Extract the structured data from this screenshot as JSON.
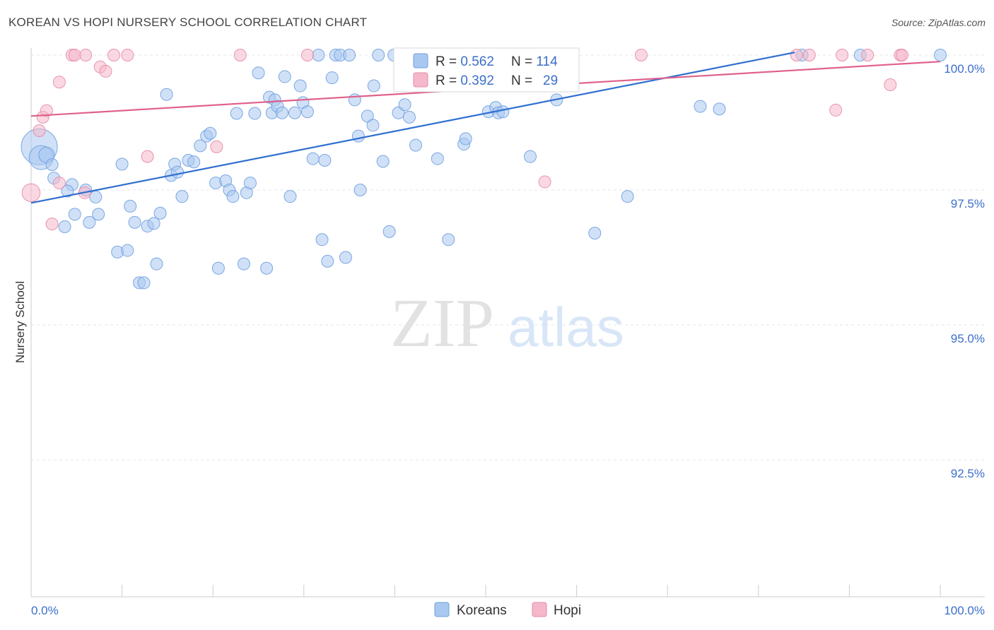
{
  "header": {
    "title": "KOREAN VS HOPI NURSERY SCHOOL CORRELATION CHART",
    "source": "Source: ZipAtlas.com"
  },
  "watermark": {
    "zip": "ZIP",
    "atlas": "atlas"
  },
  "colors": {
    "korean_fill": "#a9c8f0",
    "korean_stroke": "#6f9fe0",
    "korean_line": "#2f6fd0",
    "hopi_fill": "#f5b8cb",
    "hopi_stroke": "#e58aa8",
    "hopi_line": "#e0608a",
    "grid": "#e3e6ea",
    "axis_text": "#3d6fc9"
  },
  "stats_box": {
    "korean": {
      "r_label": "R = ",
      "r_value": "0.562",
      "n_label": "N = ",
      "n_value": "114"
    },
    "hopi": {
      "r_label": "R = ",
      "r_value": "0.392",
      "n_label": "N = ",
      "n_value": "29"
    }
  },
  "chart_data": {
    "type": "scatter",
    "title": "KOREAN VS HOPI NURSERY SCHOOL CORRELATION CHART",
    "xlabel": "",
    "ylabel": "Nursery School",
    "xlim": [
      0,
      100
    ],
    "ylim": [
      90.2,
      100.5
    ],
    "x_tick_labels": [
      {
        "value": 0,
        "label": "0.0%"
      },
      {
        "value": 100,
        "label": "100.0%"
      }
    ],
    "y_tick_labels": [
      {
        "value": 100,
        "label": "100.0%"
      },
      {
        "value": 97.5,
        "label": "97.5%"
      },
      {
        "value": 95,
        "label": "95.0%"
      },
      {
        "value": 92.5,
        "label": "92.5%"
      }
    ],
    "grid": true,
    "legend_position": "bottom-center",
    "series": [
      {
        "name": "Koreans",
        "r": 0.562,
        "n": 114,
        "trend": [
          [
            0,
            97.26
          ],
          [
            84,
            100.05
          ]
        ],
        "points": [
          [
            0.9,
            98.3,
            3
          ],
          [
            1.1,
            98.1,
            2
          ],
          [
            1.7,
            98.15,
            1.3
          ],
          [
            2.3,
            97.97,
            1
          ],
          [
            2.5,
            97.72,
            1
          ],
          [
            4.5,
            97.6,
            1
          ],
          [
            4.0,
            97.48,
            1
          ],
          [
            6.0,
            97.5,
            1
          ],
          [
            7.1,
            97.37,
            1
          ],
          [
            4.8,
            97.05,
            1
          ],
          [
            7.4,
            97.05,
            1
          ],
          [
            3.7,
            96.82,
            1
          ],
          [
            6.4,
            96.9,
            1
          ],
          [
            10.0,
            97.98,
            1
          ],
          [
            10.9,
            97.2,
            1
          ],
          [
            11.4,
            96.9,
            1
          ],
          [
            12.8,
            96.83,
            1
          ],
          [
            13.5,
            96.88,
            1
          ],
          [
            14.2,
            97.07,
            1
          ],
          [
            9.5,
            96.35,
            1
          ],
          [
            10.6,
            96.38,
            1
          ],
          [
            13.8,
            96.13,
            1
          ],
          [
            11.9,
            95.78,
            1
          ],
          [
            12.4,
            95.78,
            1
          ],
          [
            14.9,
            99.27,
            1
          ],
          [
            15.4,
            97.77,
            1
          ],
          [
            15.8,
            97.98,
            1
          ],
          [
            16.1,
            97.83,
            1
          ],
          [
            16.6,
            97.38,
            1
          ],
          [
            17.3,
            98.05,
            1
          ],
          [
            17.9,
            98.02,
            1
          ],
          [
            18.6,
            98.32,
            1
          ],
          [
            19.3,
            98.5,
            1
          ],
          [
            19.7,
            98.55,
            1
          ],
          [
            20.3,
            97.63,
            1
          ],
          [
            20.6,
            96.05,
            1
          ],
          [
            21.4,
            97.67,
            1
          ],
          [
            21.8,
            97.5,
            1
          ],
          [
            22.2,
            97.38,
            1
          ],
          [
            22.6,
            98.92,
            1
          ],
          [
            23.4,
            96.13,
            1
          ],
          [
            23.7,
            97.45,
            1
          ],
          [
            24.1,
            97.63,
            1
          ],
          [
            24.6,
            98.92,
            1
          ],
          [
            25.0,
            99.67,
            1
          ],
          [
            25.9,
            96.05,
            1
          ],
          [
            26.2,
            99.22,
            1
          ],
          [
            26.5,
            98.93,
            1
          ],
          [
            26.8,
            99.17,
            1
          ],
          [
            27.1,
            99.05,
            1
          ],
          [
            27.6,
            98.93,
            1
          ],
          [
            27.9,
            99.6,
            1
          ],
          [
            28.5,
            97.38,
            1
          ],
          [
            29.0,
            98.93,
            1
          ],
          [
            29.9,
            99.12,
            1
          ],
          [
            29.6,
            99.43,
            1
          ],
          [
            30.4,
            98.95,
            1
          ],
          [
            31.0,
            98.08,
            1
          ],
          [
            31.6,
            100.0,
            1
          ],
          [
            32.0,
            96.58,
            1
          ],
          [
            32.3,
            98.05,
            1
          ],
          [
            32.6,
            96.18,
            1
          ],
          [
            33.1,
            99.58,
            1
          ],
          [
            33.5,
            100.0,
            1
          ],
          [
            34.0,
            100.0,
            1
          ],
          [
            34.6,
            96.25,
            1
          ],
          [
            35.0,
            100.0,
            1
          ],
          [
            35.6,
            99.17,
            1
          ],
          [
            36.0,
            98.5,
            1
          ],
          [
            36.2,
            97.5,
            1
          ],
          [
            37.0,
            98.87,
            1
          ],
          [
            37.6,
            98.7,
            1
          ],
          [
            37.7,
            99.43,
            1
          ],
          [
            38.2,
            100.0,
            1
          ],
          [
            38.7,
            98.03,
            1
          ],
          [
            39.4,
            96.73,
            1
          ],
          [
            39.9,
            100.0,
            1
          ],
          [
            40.4,
            98.93,
            1
          ],
          [
            41.1,
            99.08,
            1
          ],
          [
            41.6,
            98.85,
            1
          ],
          [
            42.3,
            98.33,
            1
          ],
          [
            44.7,
            98.08,
            1
          ],
          [
            45.9,
            96.58,
            1
          ],
          [
            46.3,
            100.0,
            1
          ],
          [
            47.6,
            98.35,
            1
          ],
          [
            47.8,
            98.45,
            1
          ],
          [
            50.3,
            98.95,
            1
          ],
          [
            51.1,
            99.03,
            1
          ],
          [
            51.4,
            98.93,
            1
          ],
          [
            51.9,
            98.95,
            1
          ],
          [
            52.6,
            100.0,
            1
          ],
          [
            54.2,
            100.0,
            1
          ],
          [
            54.9,
            98.12,
            1
          ],
          [
            55.8,
            99.45,
            1
          ],
          [
            56.5,
            100.0,
            1
          ],
          [
            56.8,
            99.6,
            1
          ],
          [
            57.8,
            99.17,
            1
          ],
          [
            58.1,
            99.6,
            1
          ],
          [
            62.0,
            96.7,
            1
          ],
          [
            65.6,
            97.38,
            1
          ],
          [
            73.6,
            99.05,
            1
          ],
          [
            75.7,
            99.0,
            1
          ],
          [
            84.8,
            100.0,
            1
          ],
          [
            91.2,
            100.0,
            1
          ],
          [
            100.0,
            100.0,
            1
          ],
          [
            44.0,
            100.0,
            1
          ],
          [
            42.9,
            100.0,
            1
          ],
          [
            55.7,
            100.0,
            1
          ],
          [
            57.2,
            100.0,
            1
          ],
          [
            53.8,
            100.0,
            1
          ],
          [
            41.3,
            100.0,
            1
          ],
          [
            40.6,
            100.0,
            1
          ],
          [
            46.9,
            100.0,
            1
          ],
          [
            52.2,
            100.0,
            1
          ]
        ]
      },
      {
        "name": "Hopi",
        "r": 0.392,
        "n": 29,
        "trend": [
          [
            0,
            98.87
          ],
          [
            100,
            99.88
          ]
        ],
        "points": [
          [
            0.0,
            97.45,
            1.5
          ],
          [
            0.9,
            98.6,
            1
          ],
          [
            1.3,
            98.85,
            1
          ],
          [
            1.7,
            98.97,
            1
          ],
          [
            2.3,
            96.87,
            1
          ],
          [
            3.1,
            97.63,
            1
          ],
          [
            3.1,
            99.5,
            1
          ],
          [
            4.5,
            100.0,
            1
          ],
          [
            4.8,
            100.0,
            1
          ],
          [
            5.9,
            97.45,
            1
          ],
          [
            6.0,
            100.0,
            1
          ],
          [
            7.6,
            99.78,
            1
          ],
          [
            8.2,
            99.7,
            1
          ],
          [
            9.1,
            100.0,
            1
          ],
          [
            10.6,
            100.0,
            1
          ],
          [
            12.8,
            98.12,
            1
          ],
          [
            20.4,
            98.3,
            1
          ],
          [
            23.0,
            100.0,
            1
          ],
          [
            30.4,
            100.0,
            1
          ],
          [
            56.5,
            97.65,
            1
          ],
          [
            67.1,
            100.0,
            1
          ],
          [
            84.2,
            100.0,
            1
          ],
          [
            85.6,
            100.0,
            1
          ],
          [
            88.5,
            98.98,
            1
          ],
          [
            89.2,
            100.0,
            1
          ],
          [
            92.0,
            100.0,
            1
          ],
          [
            94.5,
            99.45,
            1
          ],
          [
            95.6,
            100.0,
            1
          ],
          [
            95.8,
            100.0,
            1
          ]
        ]
      }
    ]
  }
}
